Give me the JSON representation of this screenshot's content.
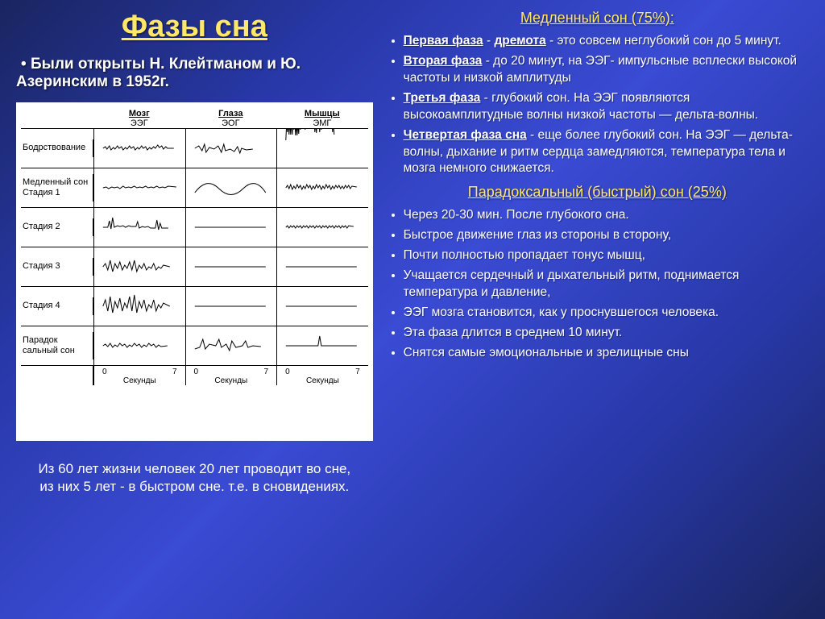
{
  "title": "Фазы сна",
  "discovery": "Были открыты Н. Клейтманом и Ю. Азеринским в 1952г.",
  "chart": {
    "columns": [
      {
        "title": "Мозг",
        "sub": "ЭЭГ"
      },
      {
        "title": "Глаза",
        "sub": "ЭОГ"
      },
      {
        "title": "Мышцы",
        "sub": "ЭМГ"
      }
    ],
    "rows": [
      {
        "label": "Бодрствование",
        "section": true
      },
      {
        "label": "Медленный сон\nСтадия 1",
        "section": true
      },
      {
        "label": "Стадия 2"
      },
      {
        "label": "Стадия 3"
      },
      {
        "label": "Стадия 4"
      },
      {
        "label": "Парадок сальный сон",
        "section": true
      }
    ],
    "axis": {
      "start": "0",
      "end": "7",
      "label": "Секунды"
    }
  },
  "footnote": "Из 60 лет жизни человек 20 лет проводит во сне, из них 5 лет - в быстром сне. т.е. в сновидениях.",
  "slow_header": "Медленный сон (75%):",
  "slow_phases": [
    {
      "name": "Первая фаза",
      "alias": "дремота",
      "text": " - это совсем неглубокий сон до 5 минут."
    },
    {
      "name": "Вторая фаза",
      "text": " - до 20 минут, на ЭЭГ- импульсные всплески высокой частоты и низкой амплитуды"
    },
    {
      "name": "Третья фаза",
      "text": " - глубокий сон. На ЭЭГ появляются высокоамплитудные волны низкой частоты — дельта-волны."
    },
    {
      "name": "Четвертая фаза сна",
      "text": " - еще более глубокий сон. На ЭЭГ — дельта-волны, дыхание и ритм сердца замедляются, температура тела и мозга немного снижается."
    }
  ],
  "fast_header": "Парадоксальный (быстрый) сон (25%)",
  "fast_bullets": [
    "Через 20-30 мин. После глубокого сна.",
    "Быстрое движение глаз из стороны в сторону,",
    "Почти полностью пропадает тонус мышц,",
    "Учащается сердечный и дыхательный ритм, поднимается температура и давление,",
    "ЭЭГ мозга становится, как у проснувшегося человека.",
    "Эта фаза длится в среднем 10 минут.",
    "Снятся самые эмоциональные и зрелищные сны"
  ],
  "waves": {
    "eeg": [
      "M2,24 l3,-2 l2,3 l3,-4 l2,5 l3,-3 l2,2 l3,-4 l2,3 l3,-2 l2,4 l3,-3 l2,2 l3,-4 l2,3 l3,-2 l2,4 l3,-3 l2,2 l3,-4 l2,3 l3,-2 l2,4 l3,-3 l2,2 l3,-3 l2,2 l3,-4 l2,3 l3,-2 l2,4 l3,-3 l2,2 l8,0",
      "M2,24 l4,-1 l3,2 l4,-2 l3,1 l4,-1 l3,2 l4,-3 l3,2 l4,-1 l3,1 l4,-2 l3,2 l4,-1 l3,1 l4,-2 l3,2 l4,-1 l3,1 l4,-2 l3,2 l4,-1 l3,1 l4,-2 l10,1",
      "M2,24 l6,0 l2,-8 l2,10 l2,-14 l2,12 l4,-2 l3,1 l4,-1 l3,2 l4,-2 l3,1 l6,0 l2,-6 l2,8 l4,-2 l3,1 l4,-1 l3,2 l6,0 l2,-10 l2,12 l2,-8 l2,6 l8,0",
      "M2,24 l3,-4 l3,8 l3,-12 l3,14 l3,-10 l3,6 l3,-8 l3,10 l3,-6 l3,4 l3,-8 l3,10 l3,-12 l3,14 l3,-8 l3,4 l3,-6 l3,8 l3,-4 l3,2 l3,-6 l3,8 l3,-4 l3,2 l3,-4 l8,2",
      "M2,24 l3,-8 l3,14 l3,-18 l3,20 l3,-14 l3,8 l3,-12 l3,16 l3,-10 l3,6 l3,-14 l3,18 l3,-20 l3,22 l3,-14 l3,8 l3,-10 l3,14 l3,-8 l3,4 l3,-10 l3,14 l3,-8 l3,4 l3,-6 l8,4",
      "M2,24 l3,-2 l3,3 l3,-4 l3,5 l3,-3 l3,2 l3,-4 l3,3 l3,-2 l3,4 l3,-3 l3,2 l3,-4 l3,3 l3,-2 l3,4 l3,-3 l3,2 l3,-4 l3,3 l3,-2 l3,4 l3,-3 l3,2 l8,-1"
    ],
    "eog": [
      "M2,24 l5,-3 l4,6 l3,-8 l2,10 l4,-6 l6,2 l5,-4 l4,8 l3,-10 l2,8 l6,-2 l5,3 l4,-6 l3,8 l2,-6 l6,2 l8,-1",
      "M2,30 q15,-20 30,-5 q15,15 30,0 q15,-15 28,5",
      "M2,24 l88,0",
      "M2,24 l88,0",
      "M2,24 l88,0",
      "M2,28 l6,-2 l4,-10 l3,12 l5,-6 l8,2 l4,-8 l3,10 l6,-4 l4,8 l3,-12 l5,8 l8,-2 l4,-6 l3,8 l6,-2 l10,1"
    ],
    "emg": [
      "dense",
      "M2,24 l2,-3 l2,4 l2,-5 l2,6 l2,-4 l2,3 l2,-5 l2,4 l2,-3 l2,5 l2,-4 l2,3 l2,-5 l2,4 l2,-3 l2,5 l2,-4 l2,3 l2,-5 l2,4 l2,-3 l2,5 l2,-4 l2,3 l2,-5 l2,4 l2,-3 l2,5 l2,-4 l2,3 l2,-4 l2,3 l2,-3 l2,4 l2,-3 l2,3 l2,-4 l2,3 l2,-3 l2,4 l2,-3 l6,1",
      "M2,24 l2,-2 l2,3 l2,-3 l2,2 l2,-2 l2,3 l2,-3 l2,2 l2,-2 l2,3 l2,-3 l2,2 l2,-2 l2,3 l2,-3 l2,2 l2,-2 l2,3 l2,-3 l2,2 l2,-2 l2,3 l2,-3 l2,2 l2,-2 l2,3 l2,-3 l2,2 l2,-2 l2,3 l2,-3 l2,2 l2,-2 l2,3 l2,-3 l2,2 l2,-2 l2,3 l2,-3 l6,1",
      "M2,24 l88,0",
      "M2,24 l88,0",
      "M2,24 l40,0 l2,-12 l2,12 l44,0"
    ]
  }
}
